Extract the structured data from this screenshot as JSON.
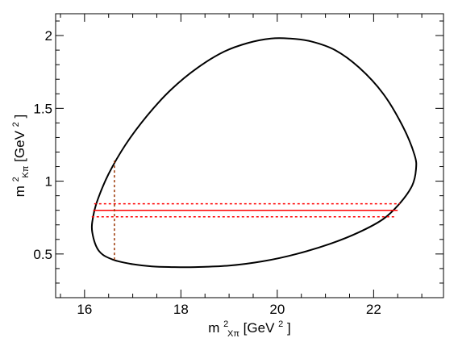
{
  "chart_data": {
    "type": "line",
    "title": "",
    "xlabel": {
      "base": "m",
      "sub": "Xπ",
      "sup": "2",
      "unit_open": " [GeV",
      "unit_sup": "2",
      "unit_close": "]"
    },
    "ylabel": {
      "base": "m",
      "sub": "Kπ",
      "sup": "2",
      "unit_open": " [GeV",
      "unit_sup": "2",
      "unit_close": "]"
    },
    "xlim": [
      15.4,
      23.45
    ],
    "ylim": [
      0.2,
      2.15
    ],
    "x_ticks": [
      {
        "value": 16,
        "label": "16"
      },
      {
        "value": 18,
        "label": "18"
      },
      {
        "value": 20,
        "label": "20"
      },
      {
        "value": 22,
        "label": "22"
      }
    ],
    "y_ticks": [
      {
        "value": 0.5,
        "label": "0.5"
      },
      {
        "value": 1.0,
        "label": "1"
      },
      {
        "value": 1.5,
        "label": "1.5"
      },
      {
        "value": 2.0,
        "label": "2"
      }
    ],
    "x_minor_step": 0.5,
    "y_minor_step": 0.1,
    "grid": false,
    "series": [
      {
        "role": "dalitz-boundary",
        "color": "#000000",
        "dashed": false,
        "x": [
          16.16,
          16.18,
          16.28,
          16.5,
          16.85,
          17.3,
          17.8,
          18.35,
          18.9,
          19.4,
          19.87,
          20.25,
          20.7,
          21.2,
          21.7,
          22.2,
          22.6,
          22.85,
          22.88,
          22.8,
          22.55,
          22.2,
          21.7,
          21.1,
          20.4,
          19.7,
          19.0,
          18.3,
          17.8,
          17.4,
          17.0,
          16.6,
          16.3,
          16.16
        ],
        "y": [
          0.65,
          0.76,
          0.88,
          1.05,
          1.25,
          1.45,
          1.63,
          1.78,
          1.89,
          1.95,
          1.98,
          1.98,
          1.96,
          1.9,
          1.78,
          1.6,
          1.38,
          1.18,
          1.08,
          0.97,
          0.85,
          0.74,
          0.65,
          0.57,
          0.5,
          0.45,
          0.42,
          0.41,
          0.41,
          0.415,
          0.43,
          0.46,
          0.52,
          0.65
        ]
      },
      {
        "role": "horizontal-band-center",
        "color": "#ff0000",
        "dashed": false,
        "x": [
          16.18,
          22.5
        ],
        "y": [
          0.8,
          0.8
        ]
      },
      {
        "role": "horizontal-band-upper",
        "color": "#ff0000",
        "dashed": true,
        "x": [
          16.2,
          22.55
        ],
        "y": [
          0.845,
          0.845
        ]
      },
      {
        "role": "horizontal-band-lower",
        "color": "#ff0000",
        "dashed": true,
        "x": [
          16.15,
          22.45
        ],
        "y": [
          0.755,
          0.755
        ]
      },
      {
        "role": "vertical-cut",
        "color": "#993300",
        "dashed": true,
        "x": [
          16.62,
          16.62
        ],
        "y": [
          0.46,
          1.15
        ]
      }
    ]
  }
}
